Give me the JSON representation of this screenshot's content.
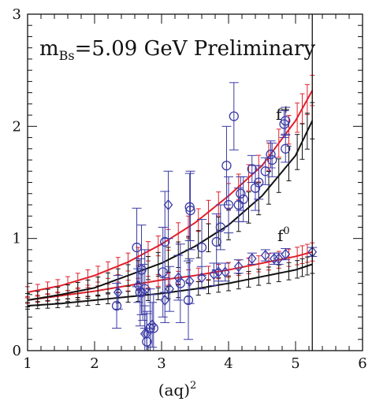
{
  "chart_data": {
    "type": "scatter",
    "title": "m",
    "title_sub": "Bs",
    "title_rest": "=5.09 GeV Preliminary",
    "xlabel": "(aq)",
    "xlabel_sup": "2",
    "ylabel": "",
    "xlim": [
      1,
      6
    ],
    "ylim": [
      0,
      3
    ],
    "xticks": [
      1,
      2,
      3,
      4,
      5,
      6
    ],
    "yticks": [
      0,
      1,
      2,
      3
    ],
    "grid": false,
    "vline_x": 5.25,
    "annotations": [
      {
        "text": "f",
        "sup": "+",
        "x": 5.05,
        "y": 2.1
      },
      {
        "text": "f",
        "sup": "0",
        "x": 5.05,
        "y": 1.0
      }
    ],
    "colors": {
      "data": "#3a3aa6",
      "fit_red": "#e0202a",
      "fit_black": "#111111"
    },
    "series": [
      {
        "marker": "circle",
        "points": [
          [
            2.33,
            0.4,
            0.2
          ],
          [
            2.63,
            0.92,
            0.35
          ],
          [
            2.68,
            0.52,
            0.3
          ],
          [
            2.7,
            0.72,
            0.4
          ],
          [
            2.75,
            0.55,
            0.35
          ],
          [
            2.78,
            0.08,
            0.25
          ],
          [
            2.83,
            0.2,
            0.35
          ],
          [
            2.88,
            0.2,
            0.3
          ],
          [
            3.02,
            0.7,
            0.4
          ],
          [
            3.05,
            0.97,
            0.45
          ],
          [
            3.28,
            0.6,
            0.35
          ],
          [
            3.4,
            0.45,
            0.35
          ],
          [
            3.42,
            1.28,
            0.3
          ],
          [
            3.43,
            1.25,
            0.35
          ],
          [
            3.6,
            0.92,
            0.25
          ],
          [
            3.82,
            0.97,
            0.25
          ],
          [
            3.88,
            1.1,
            0.2
          ],
          [
            3.97,
            1.65,
            0.35
          ],
          [
            4.0,
            1.3,
            0.25
          ],
          [
            4.08,
            2.09,
            0.3
          ],
          [
            4.15,
            1.3,
            0.15
          ],
          [
            4.18,
            1.4,
            0.15
          ],
          [
            4.22,
            1.35,
            0.2
          ],
          [
            4.35,
            1.62,
            0.12
          ],
          [
            4.4,
            1.45,
            0.2
          ],
          [
            4.45,
            1.5,
            0.15
          ],
          [
            4.55,
            1.6,
            0.12
          ],
          [
            4.63,
            1.75,
            0.12
          ],
          [
            4.65,
            1.7,
            0.15
          ],
          [
            4.83,
            2.02,
            0.12
          ],
          [
            4.85,
            2.05,
            0.12
          ],
          [
            4.85,
            1.8,
            0.12
          ]
        ]
      },
      {
        "marker": "diamond",
        "points": [
          [
            2.35,
            0.52,
            0.15
          ],
          [
            2.65,
            0.58,
            0.15
          ],
          [
            2.72,
            0.52,
            0.25
          ],
          [
            2.75,
            0.15,
            0.25
          ],
          [
            2.78,
            0.15,
            0.2
          ],
          [
            2.86,
            0.23,
            0.2
          ],
          [
            3.05,
            0.45,
            0.2
          ],
          [
            3.1,
            1.3,
            0.3
          ],
          [
            3.12,
            0.55,
            0.2
          ],
          [
            3.25,
            0.65,
            0.2
          ],
          [
            3.42,
            0.62,
            0.2
          ],
          [
            3.6,
            0.65,
            0.1
          ],
          [
            3.78,
            0.68,
            0.1
          ],
          [
            3.85,
            0.7,
            0.08
          ],
          [
            3.95,
            0.7,
            0.08
          ],
          [
            4.15,
            0.75,
            0.06
          ],
          [
            4.35,
            0.82,
            0.05
          ],
          [
            4.55,
            0.85,
            0.05
          ],
          [
            4.68,
            0.82,
            0.05
          ],
          [
            4.75,
            0.82,
            0.05
          ],
          [
            4.85,
            0.86,
            0.05
          ],
          [
            5.25,
            0.88,
            0.04
          ]
        ]
      }
    ],
    "fits": [
      {
        "color": "red",
        "x": [
          1.0,
          1.5,
          2.0,
          2.5,
          3.0,
          3.5,
          4.0,
          4.5,
          5.0,
          5.25
        ],
        "y": [
          0.52,
          0.58,
          0.67,
          0.79,
          0.95,
          1.14,
          1.38,
          1.65,
          2.05,
          2.32
        ],
        "err": 0.05
      },
      {
        "color": "red",
        "x": [
          1.0,
          1.5,
          2.0,
          2.5,
          3.0,
          3.5,
          4.0,
          4.5,
          5.0,
          5.25
        ],
        "y": [
          0.45,
          0.49,
          0.53,
          0.58,
          0.63,
          0.67,
          0.72,
          0.78,
          0.84,
          0.88
        ],
        "err": 0.03
      },
      {
        "color": "black",
        "x": [
          1.0,
          1.5,
          2.0,
          2.5,
          3.0,
          3.5,
          4.0,
          4.5,
          5.0,
          5.25
        ],
        "y": [
          0.45,
          0.5,
          0.56,
          0.67,
          0.78,
          0.93,
          1.12,
          1.38,
          1.74,
          2.05
        ],
        "err": 0.06
      },
      {
        "color": "black",
        "x": [
          1.0,
          1.5,
          2.0,
          2.5,
          3.0,
          3.5,
          4.0,
          4.5,
          5.0,
          5.25
        ],
        "y": [
          0.4,
          0.42,
          0.45,
          0.48,
          0.51,
          0.55,
          0.6,
          0.66,
          0.72,
          0.77
        ],
        "err": 0.03
      }
    ]
  }
}
